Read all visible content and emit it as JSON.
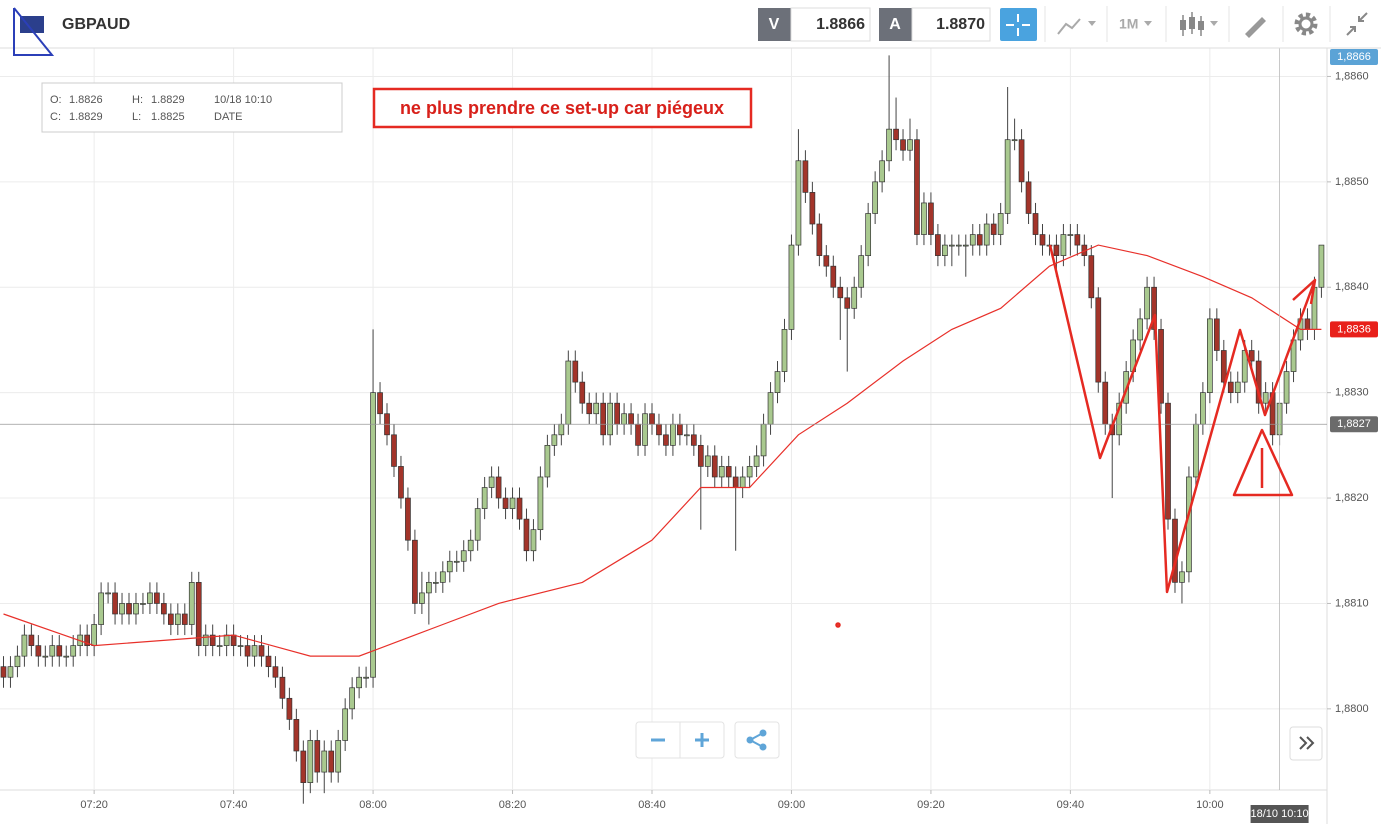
{
  "toolbar": {
    "symbol": "GBPAUD",
    "bid_label": "V",
    "bid": "1.8866",
    "ask_label": "A",
    "ask": "1.8870",
    "timeframe": "1M"
  },
  "ohlc_box": {
    "o_label": "O:",
    "o": "1.8826",
    "h_label": "H:",
    "h": "1.8829",
    "datetime": "10/18 10:10",
    "c_label": "C:",
    "c": "1.8829",
    "l_label": "L:",
    "l": "1.8825",
    "date_label": "DATE"
  },
  "annotation": "ne plus prendre ce set-up car piégeux",
  "chart_data": {
    "type": "candlestick",
    "up_color": "#a9c98f",
    "down_color": "#a3342a",
    "grid": true,
    "xlim": [
      426.5,
      616.8
    ],
    "xticks": [
      {
        "value": 440,
        "label": "07:20"
      },
      {
        "value": 460,
        "label": "07:40"
      },
      {
        "value": 480,
        "label": "08:00"
      },
      {
        "value": 500,
        "label": "08:20"
      },
      {
        "value": 520,
        "label": "08:40"
      },
      {
        "value": 540,
        "label": "09:00"
      },
      {
        "value": 560,
        "label": "09:20"
      },
      {
        "value": 580,
        "label": "09:40"
      },
      {
        "value": 600,
        "label": "10:00"
      }
    ],
    "ylim": [
      1.87923,
      1.88627
    ],
    "yticks": [
      {
        "value": 1.88,
        "label": "1,8800"
      },
      {
        "value": 1.881,
        "label": "1,8810"
      },
      {
        "value": 1.882,
        "label": "1,8820"
      },
      {
        "value": 1.883,
        "label": "1,8830"
      },
      {
        "value": 1.884,
        "label": "1,8840"
      },
      {
        "value": 1.885,
        "label": "1,8850"
      },
      {
        "value": 1.886,
        "label": "1,8860"
      }
    ],
    "price_labels": [
      {
        "value": 1.8866,
        "label": "1,8866",
        "color": "#5ba3d6"
      },
      {
        "value": 1.8836,
        "label": "1,8836",
        "color": "#e8201a"
      },
      {
        "value": 1.8827,
        "label": "1,8827",
        "color": "#6b6b6b"
      }
    ],
    "crosshair_time": "18/10 10:10",
    "x": [
      427,
      428,
      429,
      430,
      431,
      432,
      433,
      434,
      435,
      436,
      437,
      438,
      439,
      440,
      441,
      442,
      443,
      444,
      445,
      446,
      447,
      448,
      449,
      450,
      451,
      452,
      453,
      454,
      455,
      456,
      457,
      458,
      459,
      460,
      461,
      462,
      463,
      464,
      465,
      466,
      467,
      468,
      469,
      470,
      471,
      472,
      473,
      474,
      475,
      476,
      477,
      478,
      479,
      480,
      481,
      482,
      483,
      484,
      485,
      486,
      487,
      488,
      489,
      490,
      491,
      492,
      493,
      494,
      495,
      496,
      497,
      498,
      499,
      500,
      501,
      502,
      503,
      504,
      505,
      506,
      507,
      508,
      509,
      510,
      511,
      512,
      513,
      514,
      515,
      516,
      517,
      518,
      519,
      520,
      521,
      522,
      523,
      524,
      525,
      526,
      527,
      528,
      529,
      530,
      531,
      532,
      533,
      534,
      535,
      536,
      537,
      538,
      539,
      540,
      541,
      542,
      543,
      544,
      545,
      546,
      547,
      548,
      549,
      550,
      551,
      552,
      553,
      554,
      555,
      556,
      557,
      558,
      559,
      560,
      561,
      562,
      563,
      564,
      565,
      566,
      567,
      568,
      569,
      570,
      571,
      572,
      573,
      574,
      575,
      576,
      577,
      578,
      579,
      580,
      581,
      582,
      583,
      584,
      585,
      586,
      587,
      588,
      589,
      590,
      591,
      592,
      593,
      594,
      595,
      596,
      597,
      598,
      599,
      600,
      601,
      602,
      603,
      604,
      605,
      606,
      607,
      608,
      609,
      610,
      611,
      612,
      613,
      614,
      615,
      616
    ],
    "open": [
      1.8804,
      1.8803,
      1.8804,
      1.8805,
      1.8807,
      1.8806,
      1.8805,
      1.8805,
      1.8806,
      1.8805,
      1.8805,
      1.8806,
      1.8807,
      1.8806,
      1.8808,
      1.8811,
      1.8811,
      1.8809,
      1.881,
      1.8809,
      1.881,
      1.881,
      1.8811,
      1.881,
      1.8809,
      1.8808,
      1.8809,
      1.8808,
      1.8812,
      1.8806,
      1.8807,
      1.8806,
      1.8806,
      1.8807,
      1.8806,
      1.8806,
      1.8805,
      1.8806,
      1.8805,
      1.8804,
      1.8803,
      1.8801,
      1.8799,
      1.8796,
      1.8793,
      1.8797,
      1.8794,
      1.8796,
      1.8794,
      1.8797,
      1.88,
      1.8802,
      1.8803,
      1.8803,
      1.883,
      1.8828,
      1.8826,
      1.8823,
      1.882,
      1.8816,
      1.881,
      1.8811,
      1.8812,
      1.8812,
      1.8813,
      1.8814,
      1.8814,
      1.8815,
      1.8816,
      1.8819,
      1.8821,
      1.8822,
      1.882,
      1.8819,
      1.882,
      1.8818,
      1.8815,
      1.8817,
      1.8822,
      1.8825,
      1.8826,
      1.8827,
      1.8833,
      1.8831,
      1.8829,
      1.8828,
      1.8829,
      1.8826,
      1.8829,
      1.8827,
      1.8828,
      1.8827,
      1.8825,
      1.8828,
      1.8827,
      1.8826,
      1.8825,
      1.8827,
      1.8826,
      1.8826,
      1.8825,
      1.8823,
      1.8824,
      1.8822,
      1.8823,
      1.8822,
      1.8821,
      1.8822,
      1.8823,
      1.8824,
      1.8827,
      1.883,
      1.8832,
      1.8836,
      1.8844,
      1.8852,
      1.8849,
      1.8846,
      1.8843,
      1.8842,
      1.884,
      1.8839,
      1.8838,
      1.884,
      1.8843,
      1.8847,
      1.885,
      1.8852,
      1.8855,
      1.8854,
      1.8853,
      1.8854,
      1.8845,
      1.8848,
      1.8845,
      1.8843,
      1.8844,
      1.8844,
      1.8844,
      1.8844,
      1.8845,
      1.8844,
      1.8846,
      1.8845,
      1.8847,
      1.8854,
      1.8854,
      1.885,
      1.8847,
      1.8845,
      1.8844,
      1.8844,
      1.8843,
      1.8845,
      1.8845,
      1.8844,
      1.8843,
      1.8839,
      1.8831,
      1.8827,
      1.8826,
      1.8829,
      1.8832,
      1.8835,
      1.8837,
      1.884,
      1.8836,
      1.8829,
      1.8818,
      1.8812,
      1.8813,
      1.8822,
      1.8827,
      1.883,
      1.8837,
      1.8834,
      1.8831,
      1.883,
      1.8831,
      1.8834,
      1.8833,
      1.8829,
      1.883,
      1.8826,
      1.8829,
      1.8832,
      1.8835,
      1.8837,
      1.8836,
      1.884
    ],
    "high": [
      1.8805,
      1.8805,
      1.8806,
      1.8808,
      1.8808,
      1.8807,
      1.8806,
      1.8807,
      1.8807,
      1.8806,
      1.8807,
      1.8808,
      1.8808,
      1.8809,
      1.8812,
      1.8812,
      1.8812,
      1.8811,
      1.8811,
      1.8811,
      1.8811,
      1.8812,
      1.8812,
      1.8811,
      1.881,
      1.881,
      1.881,
      1.8813,
      1.8813,
      1.8808,
      1.8808,
      1.8807,
      1.8808,
      1.8808,
      1.8807,
      1.8807,
      1.8807,
      1.8807,
      1.8806,
      1.8805,
      1.8804,
      1.8802,
      1.88,
      1.8797,
      1.8798,
      1.8798,
      1.8797,
      1.8797,
      1.8798,
      1.8801,
      1.8803,
      1.8804,
      1.8804,
      1.8836,
      1.8831,
      1.8829,
      1.8827,
      1.8824,
      1.8821,
      1.8817,
      1.8813,
      1.8813,
      1.8813,
      1.8814,
      1.8815,
      1.8815,
      1.8816,
      1.8817,
      1.882,
      1.8822,
      1.8823,
      1.8823,
      1.8821,
      1.8821,
      1.8821,
      1.8819,
      1.8818,
      1.8823,
      1.8826,
      1.8827,
      1.8828,
      1.8834,
      1.8834,
      1.8832,
      1.883,
      1.883,
      1.883,
      1.883,
      1.883,
      1.8829,
      1.8829,
      1.8828,
      1.8829,
      1.8829,
      1.8828,
      1.8827,
      1.8828,
      1.8828,
      1.8827,
      1.8827,
      1.8826,
      1.8825,
      1.8825,
      1.8824,
      1.8824,
      1.8823,
      1.8823,
      1.8824,
      1.8825,
      1.8828,
      1.8831,
      1.8833,
      1.8837,
      1.8845,
      1.8855,
      1.8853,
      1.885,
      1.8847,
      1.8844,
      1.8843,
      1.8841,
      1.884,
      1.8841,
      1.8844,
      1.8848,
      1.8851,
      1.8853,
      1.8862,
      1.8858,
      1.8855,
      1.8856,
      1.8855,
      1.8849,
      1.8849,
      1.8846,
      1.8845,
      1.8845,
      1.8845,
      1.8845,
      1.8846,
      1.8846,
      1.8847,
      1.8847,
      1.8848,
      1.8859,
      1.8856,
      1.8855,
      1.8851,
      1.8848,
      1.8846,
      1.8845,
      1.8845,
      1.8846,
      1.8846,
      1.8846,
      1.8845,
      1.8844,
      1.884,
      1.8832,
      1.8828,
      1.883,
      1.8833,
      1.8836,
      1.8838,
      1.8841,
      1.8841,
      1.8837,
      1.883,
      1.8819,
      1.8814,
      1.8823,
      1.8828,
      1.8831,
      1.8838,
      1.8838,
      1.8835,
      1.8832,
      1.8832,
      1.8835,
      1.8835,
      1.8834,
      1.8831,
      1.8831,
      1.8829,
      1.8833,
      1.8836,
      1.8838,
      1.8838,
      1.8841,
      1.8844
    ],
    "low": [
      1.8802,
      1.8802,
      1.8803,
      1.8804,
      1.8805,
      1.8804,
      1.8804,
      1.8804,
      1.8804,
      1.8804,
      1.8804,
      1.8805,
      1.8805,
      1.8805,
      1.8807,
      1.881,
      1.8808,
      1.8808,
      1.8808,
      1.8808,
      1.8809,
      1.8809,
      1.8809,
      1.8808,
      1.8807,
      1.8807,
      1.8807,
      1.8807,
      1.8805,
      1.8805,
      1.8805,
      1.8805,
      1.8805,
      1.8805,
      1.8805,
      1.8804,
      1.8804,
      1.8804,
      1.8803,
      1.8802,
      1.88,
      1.8798,
      1.8795,
      1.8791,
      1.8792,
      1.8793,
      1.8792,
      1.8793,
      1.8793,
      1.8796,
      1.8799,
      1.8801,
      1.8802,
      1.8802,
      1.8827,
      1.8825,
      1.8822,
      1.8819,
      1.8815,
      1.8809,
      1.8809,
      1.8808,
      1.8811,
      1.8811,
      1.8812,
      1.8813,
      1.8813,
      1.8814,
      1.8815,
      1.8818,
      1.882,
      1.8819,
      1.8818,
      1.8818,
      1.8817,
      1.8814,
      1.8814,
      1.8816,
      1.8821,
      1.8824,
      1.8825,
      1.8826,
      1.883,
      1.8828,
      1.8827,
      1.8827,
      1.8825,
      1.8825,
      1.8826,
      1.8826,
      1.8826,
      1.8824,
      1.8824,
      1.8826,
      1.8825,
      1.8824,
      1.8824,
      1.8825,
      1.8825,
      1.8824,
      1.8817,
      1.8822,
      1.8821,
      1.8821,
      1.8821,
      1.8815,
      1.882,
      1.8821,
      1.8822,
      1.8823,
      1.8826,
      1.8829,
      1.8831,
      1.8835,
      1.8843,
      1.8848,
      1.8845,
      1.8842,
      1.8841,
      1.8839,
      1.8835,
      1.8832,
      1.8837,
      1.8839,
      1.8842,
      1.8846,
      1.8849,
      1.8851,
      1.8853,
      1.8852,
      1.8852,
      1.8844,
      1.8844,
      1.8844,
      1.8842,
      1.8842,
      1.8842,
      1.8843,
      1.8841,
      1.8843,
      1.8843,
      1.8843,
      1.8844,
      1.8844,
      1.8846,
      1.8853,
      1.8849,
      1.8846,
      1.8844,
      1.8843,
      1.8843,
      1.8841,
      1.8842,
      1.8843,
      1.8843,
      1.8842,
      1.8838,
      1.883,
      1.8826,
      1.882,
      1.8825,
      1.8828,
      1.8831,
      1.8834,
      1.8836,
      1.8835,
      1.8828,
      1.8817,
      1.8811,
      1.881,
      1.8812,
      1.8821,
      1.8826,
      1.8829,
      1.8833,
      1.883,
      1.8829,
      1.8829,
      1.883,
      1.8832,
      1.8828,
      1.8828,
      1.8825,
      1.8825,
      1.8828,
      1.8831,
      1.8834,
      1.8835,
      1.8835,
      1.8839
    ],
    "close": [
      1.8803,
      1.8804,
      1.8805,
      1.8807,
      1.8806,
      1.8805,
      1.8805,
      1.8806,
      1.8805,
      1.8805,
      1.8806,
      1.8807,
      1.8806,
      1.8808,
      1.8811,
      1.8811,
      1.8809,
      1.881,
      1.8809,
      1.881,
      1.881,
      1.8811,
      1.881,
      1.8809,
      1.8808,
      1.8809,
      1.8808,
      1.8812,
      1.8806,
      1.8807,
      1.8806,
      1.8806,
      1.8807,
      1.8806,
      1.8806,
      1.8805,
      1.8806,
      1.8805,
      1.8804,
      1.8803,
      1.8801,
      1.8799,
      1.8796,
      1.8793,
      1.8797,
      1.8794,
      1.8796,
      1.8794,
      1.8797,
      1.88,
      1.8802,
      1.8803,
      1.8803,
      1.883,
      1.8828,
      1.8826,
      1.8823,
      1.882,
      1.8816,
      1.881,
      1.8811,
      1.8812,
      1.8812,
      1.8813,
      1.8814,
      1.8814,
      1.8815,
      1.8816,
      1.8819,
      1.8821,
      1.8822,
      1.882,
      1.8819,
      1.882,
      1.8818,
      1.8815,
      1.8817,
      1.8822,
      1.8825,
      1.8826,
      1.8827,
      1.8833,
      1.8831,
      1.8829,
      1.8828,
      1.8829,
      1.8826,
      1.8829,
      1.8827,
      1.8828,
      1.8827,
      1.8825,
      1.8828,
      1.8827,
      1.8826,
      1.8825,
      1.8827,
      1.8826,
      1.8826,
      1.8825,
      1.8823,
      1.8824,
      1.8822,
      1.8823,
      1.8822,
      1.8821,
      1.8822,
      1.8823,
      1.8824,
      1.8827,
      1.883,
      1.8832,
      1.8836,
      1.8844,
      1.8852,
      1.8849,
      1.8846,
      1.8843,
      1.8842,
      1.884,
      1.8839,
      1.8838,
      1.884,
      1.8843,
      1.8847,
      1.885,
      1.8852,
      1.8855,
      1.8854,
      1.8853,
      1.8854,
      1.8845,
      1.8848,
      1.8845,
      1.8843,
      1.8844,
      1.8844,
      1.8844,
      1.8844,
      1.8845,
      1.8844,
      1.8846,
      1.8845,
      1.8847,
      1.8854,
      1.8854,
      1.885,
      1.8847,
      1.8845,
      1.8844,
      1.8844,
      1.8843,
      1.8845,
      1.8845,
      1.8844,
      1.8843,
      1.8839,
      1.8831,
      1.8827,
      1.8826,
      1.8829,
      1.8832,
      1.8835,
      1.8837,
      1.884,
      1.8836,
      1.8829,
      1.8818,
      1.8812,
      1.8813,
      1.8822,
      1.8827,
      1.883,
      1.8837,
      1.8834,
      1.8831,
      1.883,
      1.8831,
      1.8834,
      1.8833,
      1.8829,
      1.883,
      1.8826,
      1.8829,
      1.8832,
      1.8835,
      1.8837,
      1.8836,
      1.884,
      1.8844
    ],
    "moving_average": {
      "color": "#e8302a",
      "x": [
        427,
        440,
        460,
        471,
        478,
        490,
        498,
        510,
        520,
        527,
        534,
        541,
        548,
        556,
        563,
        570,
        577,
        584,
        591,
        599,
        606,
        613,
        616
      ],
      "values": [
        1.8809,
        1.8806,
        1.8807,
        1.8805,
        1.8805,
        1.8808,
        1.881,
        1.8812,
        1.8816,
        1.8821,
        1.8821,
        1.8826,
        1.8829,
        1.8833,
        1.8836,
        1.8838,
        1.8842,
        1.8844,
        1.8843,
        1.8841,
        1.8839,
        1.8836,
        1.8836
      ]
    }
  }
}
